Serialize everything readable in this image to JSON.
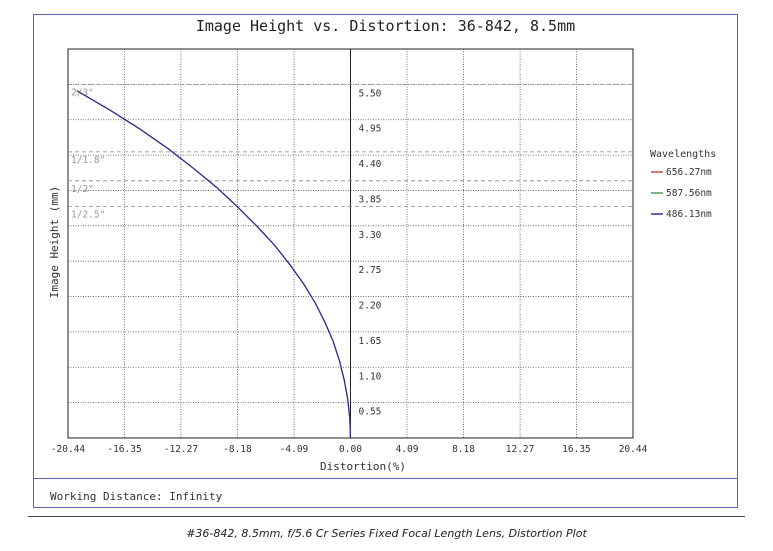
{
  "chart_data": {
    "type": "line",
    "title": "Image Height vs. Distortion: 36-842, 8.5mm",
    "xlabel": "Distortion(%)",
    "ylabel": "Image Height (mm)",
    "xlim": [
      -20.44,
      20.44
    ],
    "ylim": [
      0,
      6.05
    ],
    "x_ticks": [
      "-20.44",
      "-16.35",
      "-12.27",
      "-8.18",
      "-4.09",
      "0.00",
      "4.09",
      "8.18",
      "12.27",
      "16.35",
      "20.44"
    ],
    "y_ticks": [
      "0.55",
      "1.10",
      "1.65",
      "2.20",
      "2.75",
      "3.30",
      "3.85",
      "4.40",
      "4.95",
      "5.50"
    ],
    "grid": true,
    "sensor_formats": [
      {
        "label": "2/3\"",
        "y": 5.5
      },
      {
        "label": "1/1.8\"",
        "y": 4.45
      },
      {
        "label": "1/2\"",
        "y": 4.0
      },
      {
        "label": "1/2.5\"",
        "y": 3.6
      }
    ],
    "legend_title": "Wavelengths",
    "legend_position": "right",
    "series": [
      {
        "name": "656.27nm",
        "color": "#c0504d",
        "x": [
          0,
          -0.05,
          -0.2,
          -0.45,
          -0.8,
          -1.25,
          -1.85,
          -2.55,
          -3.4,
          -4.4,
          -5.5,
          -6.8,
          -8.2,
          -9.7,
          -11.4,
          -13.2,
          -15.2,
          -17.4,
          -19.8
        ],
        "y": [
          0,
          0.3,
          0.6,
          0.9,
          1.2,
          1.5,
          1.8,
          2.1,
          2.4,
          2.7,
          3.0,
          3.3,
          3.6,
          3.9,
          4.2,
          4.5,
          4.8,
          5.1,
          5.4
        ]
      },
      {
        "name": "587.56nm",
        "color": "#4f9a5e",
        "x": [
          0,
          -0.05,
          -0.2,
          -0.45,
          -0.8,
          -1.25,
          -1.85,
          -2.55,
          -3.4,
          -4.4,
          -5.5,
          -6.8,
          -8.2,
          -9.7,
          -11.4,
          -13.2,
          -15.2,
          -17.4,
          -19.8
        ],
        "y": [
          0,
          0.3,
          0.6,
          0.9,
          1.2,
          1.5,
          1.8,
          2.1,
          2.4,
          2.7,
          3.0,
          3.3,
          3.6,
          3.9,
          4.2,
          4.5,
          4.8,
          5.1,
          5.4
        ]
      },
      {
        "name": "486.13nm",
        "color": "#2d2d9a",
        "x": [
          0,
          -0.05,
          -0.2,
          -0.45,
          -0.8,
          -1.25,
          -1.85,
          -2.55,
          -3.4,
          -4.4,
          -5.5,
          -6.8,
          -8.2,
          -9.7,
          -11.4,
          -13.2,
          -15.2,
          -17.4,
          -19.8
        ],
        "y": [
          0,
          0.3,
          0.6,
          0.9,
          1.2,
          1.5,
          1.8,
          2.1,
          2.4,
          2.7,
          3.0,
          3.3,
          3.6,
          3.9,
          4.2,
          4.5,
          4.8,
          5.1,
          5.4
        ]
      }
    ]
  },
  "footer": {
    "working_distance": "Working Distance: Infinity"
  },
  "caption": "#36-842, 8.5mm, f/5.6 Cr Series Fixed Focal Length Lens, Distortion Plot"
}
